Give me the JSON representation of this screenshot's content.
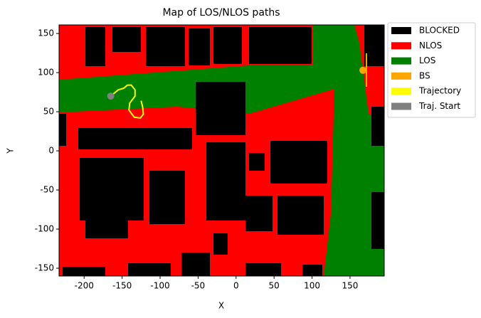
{
  "chart_data": {
    "type": "map",
    "title": "Map of LOS/NLOS paths",
    "x_label": "X",
    "y_label": "Y",
    "xlim": [
      -233,
      195
    ],
    "ylim": [
      -160,
      161
    ],
    "xticks": [
      -200,
      -150,
      -100,
      -50,
      0,
      50,
      100,
      150
    ],
    "yticks": [
      -150,
      -100,
      -50,
      0,
      50,
      100,
      150
    ],
    "legend": "outside upper right",
    "series": [
      {
        "name": "BLOCKED",
        "color": "#000000"
      },
      {
        "name": "NLOS",
        "color": "#ff0000"
      },
      {
        "name": "LOS",
        "color": "#008000"
      },
      {
        "name": "BS",
        "color": "#ffa500",
        "x": [
          167
        ],
        "y": [
          103
        ]
      },
      {
        "name": "Trajectory",
        "color": "#ffff00",
        "x": [
          -165,
          -155,
          -148,
          -143,
          -138,
          -133,
          -133,
          -140,
          -141,
          -134,
          -126,
          -122,
          -123,
          -125
        ],
        "y": [
          70,
          78,
          80,
          84,
          84,
          78,
          70,
          61,
          52,
          43,
          42,
          47,
          56,
          64
        ]
      },
      {
        "name": "Traj. Start",
        "color": "#808080",
        "x": [
          -165
        ],
        "y": [
          70
        ]
      }
    ]
  }
}
